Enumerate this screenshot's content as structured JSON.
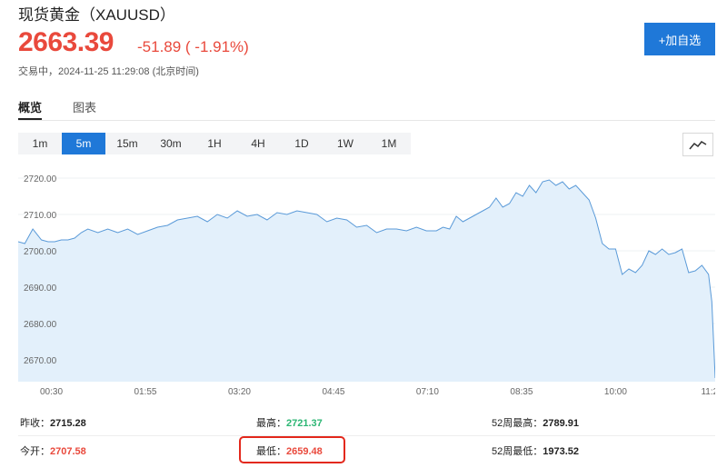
{
  "header": {
    "title": "现货黄金（XAUUSD）",
    "price": "2663.39",
    "change": "-51.89 ( -1.91%)",
    "trade_time": "交易中，2024-11-25 11:29:08 (北京时间)",
    "add_button": "+加自选"
  },
  "tabs": [
    {
      "label": "概览",
      "active": true
    },
    {
      "label": "图表",
      "active": false
    }
  ],
  "intervals": [
    {
      "label": "1m",
      "active": false
    },
    {
      "label": "5m",
      "active": true
    },
    {
      "label": "15m",
      "active": false
    },
    {
      "label": "30m",
      "active": false
    },
    {
      "label": "1H",
      "active": false
    },
    {
      "label": "4H",
      "active": false
    },
    {
      "label": "1D",
      "active": false
    },
    {
      "label": "1W",
      "active": false
    },
    {
      "label": "1M",
      "active": false
    }
  ],
  "chart_toggle_icon": "line-chart-icon",
  "colors": {
    "up": "#2bb673",
    "down": "#e9493c",
    "accent": "#1f78d8",
    "line": "#5a9ad8",
    "fill": "#e3f0fb"
  },
  "chart_data": {
    "type": "area",
    "ylim": [
      2664,
      2724
    ],
    "yticks": [
      "2720.00",
      "2710.00",
      "2700.00",
      "2690.00",
      "2680.00",
      "2670.00"
    ],
    "ytick_values": [
      2720,
      2710,
      2700,
      2690,
      2680,
      2670
    ],
    "xticks": [
      "00:30",
      "01:55",
      "03:20",
      "04:45",
      "07:10",
      "08:35",
      "10:00",
      "11:2"
    ],
    "xtick_positions": [
      0.5,
      1.916,
      3.333,
      4.75,
      6.166,
      7.583,
      9.0,
      10.416
    ],
    "xlim": [
      0,
      10.5
    ],
    "series": [
      {
        "x": [
          0,
          0.1,
          0.22,
          0.35,
          0.45,
          0.55,
          0.65,
          0.75,
          0.85,
          0.95,
          1.05,
          1.2,
          1.35,
          1.5,
          1.65,
          1.8,
          1.95,
          2.1,
          2.25,
          2.4,
          2.55,
          2.7,
          2.85,
          3.0,
          3.15,
          3.3,
          3.45,
          3.6,
          3.75,
          3.9,
          4.05,
          4.2,
          4.35,
          4.5,
          4.65,
          4.8,
          4.95,
          5.1,
          5.25,
          5.4,
          5.55,
          5.7,
          5.85,
          6.0,
          6.15,
          6.3,
          6.4,
          6.5,
          6.6,
          6.7,
          6.8,
          6.9,
          7.0,
          7.1,
          7.2,
          7.3,
          7.4,
          7.5,
          7.6,
          7.7,
          7.8,
          7.9,
          8.0,
          8.1,
          8.2,
          8.3,
          8.4,
          8.5,
          8.6,
          8.7,
          8.8,
          8.9,
          9.0,
          9.1,
          9.2,
          9.3,
          9.4,
          9.5,
          9.6,
          9.7,
          9.8,
          9.9,
          10.0,
          10.1,
          10.2,
          10.3,
          10.4,
          10.45,
          10.5
        ],
        "y": [
          2702.5,
          2702,
          2706,
          2703,
          2702.5,
          2702.5,
          2703,
          2703,
          2703.5,
          2705,
          2706,
          2705,
          2706,
          2705,
          2706,
          2704.5,
          2705.5,
          2706.5,
          2707,
          2708.5,
          2709,
          2709.5,
          2708,
          2710,
          2709,
          2711,
          2709.5,
          2710,
          2708.5,
          2710.5,
          2710,
          2711,
          2710.5,
          2710,
          2708,
          2709,
          2708.5,
          2706.5,
          2707,
          2705,
          2706,
          2706,
          2705.5,
          2706.5,
          2705.5,
          2705.5,
          2706.5,
          2706,
          2709.5,
          2708,
          2709,
          2710,
          2711,
          2712,
          2714.5,
          2712,
          2713,
          2716,
          2715,
          2718,
          2716,
          2719,
          2719.5,
          2718,
          2719,
          2717,
          2718,
          2716,
          2714,
          2709,
          2702,
          2700.5,
          2700.5,
          2693.5,
          2695,
          2694,
          2696,
          2700,
          2699,
          2700.5,
          2699,
          2699.5,
          2700.5,
          2694,
          2694.5,
          2696,
          2693.5,
          2686,
          2665
        ]
      }
    ]
  },
  "stats": {
    "prev_close": {
      "label": "昨收：",
      "value": "2715.28"
    },
    "high": {
      "label": "最高：",
      "value": "2721.37"
    },
    "high52": {
      "label": "52周最高：",
      "value": "2789.91"
    },
    "open": {
      "label": "今开：",
      "value": "2707.58"
    },
    "low": {
      "label": "最低：",
      "value": "2659.48"
    },
    "low52": {
      "label": "52周最低：",
      "value": "1973.52"
    }
  }
}
